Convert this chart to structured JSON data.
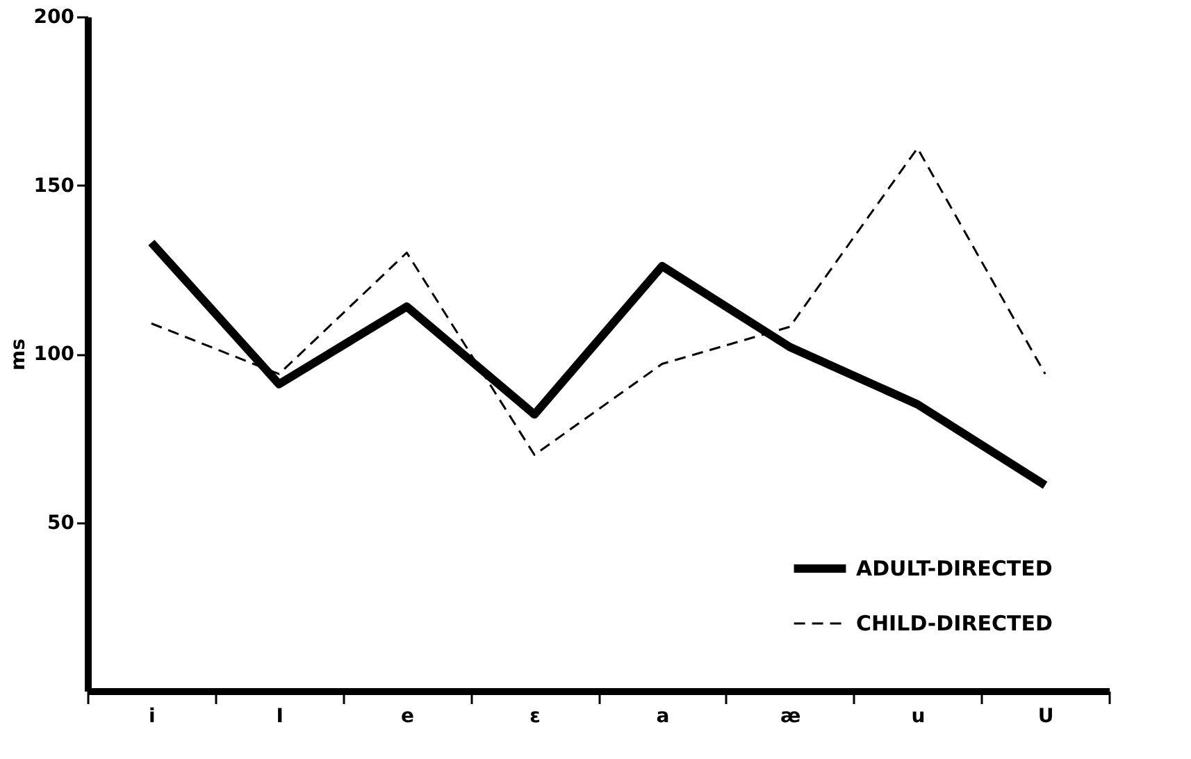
{
  "chart_data": {
    "type": "line",
    "ylabel": "ms",
    "categories": [
      "i",
      "I",
      "e",
      "ɛ",
      "a",
      "æ",
      "u",
      "U"
    ],
    "series": [
      {
        "name": "ADULT-DIRECTED",
        "color": "#000000",
        "line_style": "solid",
        "values": [
          133,
          91,
          114,
          82,
          126,
          102,
          85,
          61
        ]
      },
      {
        "name": "CHILD-DIRECTED",
        "color": "#000000",
        "line_style": "dashed",
        "values": [
          109,
          94,
          130,
          70,
          97,
          108,
          161,
          94
        ]
      }
    ],
    "ylim": [
      0,
      200
    ],
    "yticks": [
      50,
      100,
      150,
      200
    ],
    "grid": false,
    "legend": "bottom right",
    "marker": "none"
  }
}
